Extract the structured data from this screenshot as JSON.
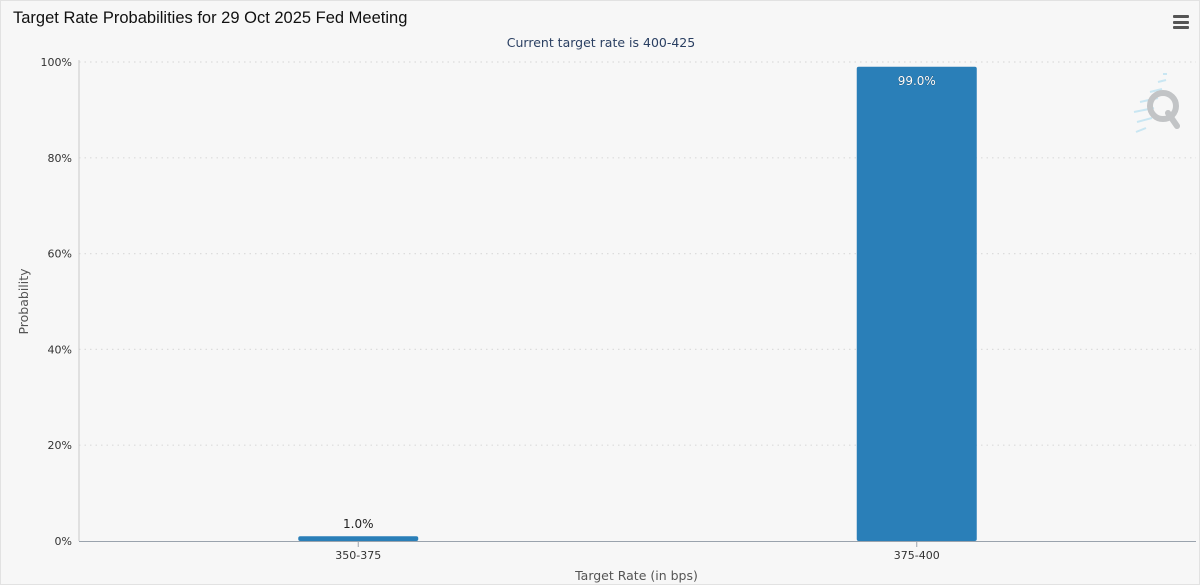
{
  "title": "Target Rate Probabilities for 29 Oct 2025 Fed Meeting",
  "subtitle": "Current target rate is 400-425",
  "menu_icon": "hamburger-menu-icon",
  "watermark_icon": "q-logo-icon",
  "colors": {
    "bar": "#2a7fb8",
    "background": "#f7f7f7",
    "grid": "#dcdcdc"
  },
  "chart_data": {
    "type": "bar",
    "categories": [
      "350-375",
      "375-400"
    ],
    "values": [
      1.0,
      99.0
    ],
    "data_labels": [
      "1.0%",
      "99.0%"
    ],
    "xlabel": "Target Rate (in bps)",
    "ylabel": "Probability",
    "ylim": [
      0,
      100
    ],
    "yticks": [
      0,
      20,
      40,
      60,
      80,
      100
    ],
    "ytick_labels": [
      "0%",
      "20%",
      "40%",
      "60%",
      "80%",
      "100%"
    ],
    "grid": "horizontal-dotted",
    "legend": "none"
  }
}
